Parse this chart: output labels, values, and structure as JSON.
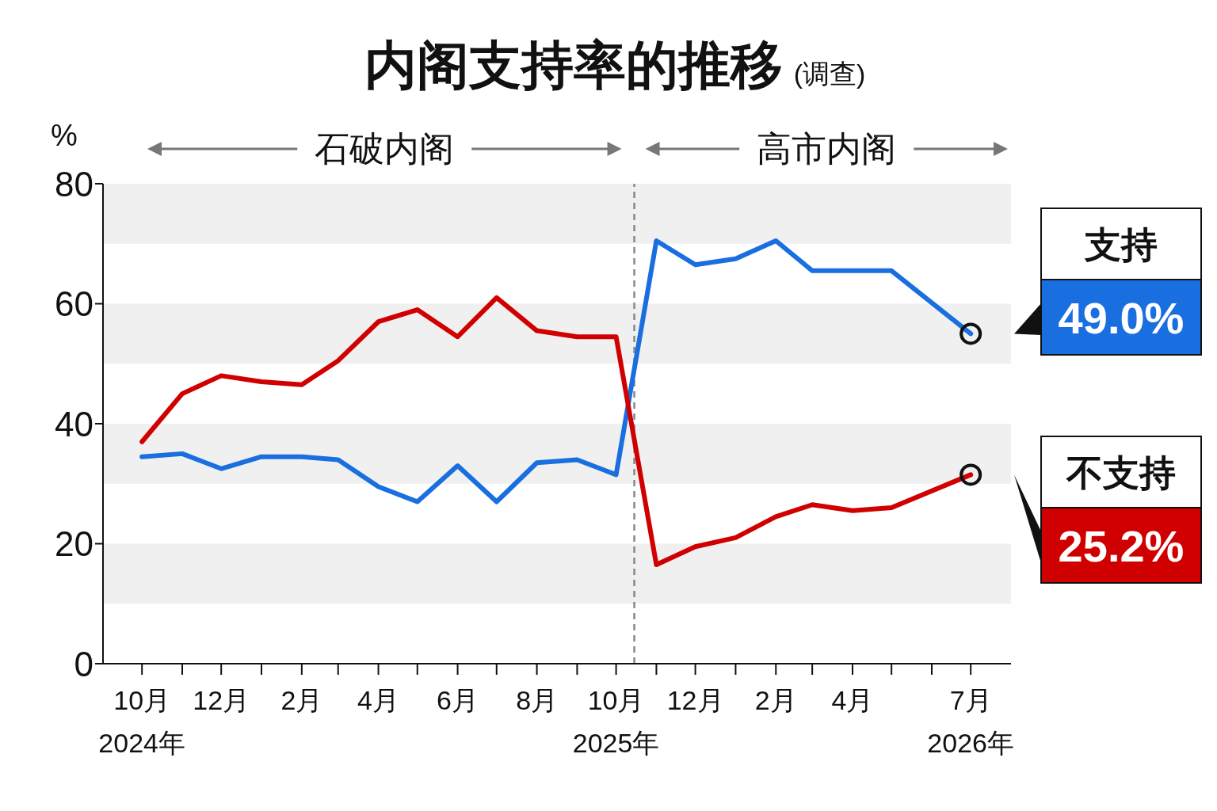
{
  "chart_data": {
    "type": "line",
    "title": "内阁支持率的推移",
    "subtitle": "(调查)",
    "ylabel": "%",
    "x": [
      "2024-10",
      "2024-11",
      "2024-12",
      "2025-01",
      "2025-02",
      "2025-03",
      "2025-04",
      "2025-05",
      "2025-06",
      "2025-07",
      "2025-08",
      "2025-09",
      "2025-10",
      "2025-11",
      "2025-12",
      "2026-01",
      "2026-02",
      "2026-03",
      "2026-04",
      "2026-05",
      "2026-07"
    ],
    "series": [
      {
        "name": "支持",
        "color": "#1a6fe0",
        "values": [
          34.5,
          35,
          32.5,
          34.5,
          34.5,
          34,
          29.5,
          27,
          33,
          27,
          33.5,
          34,
          31.5,
          70.5,
          66.5,
          67.5,
          70.5,
          65.5,
          65.5,
          65.5,
          55
        ]
      },
      {
        "name": "不支持",
        "color": "#d10000",
        "values": [
          37,
          45,
          48,
          47,
          46.5,
          50.5,
          57,
          59,
          54.5,
          61,
          55.5,
          54.5,
          54.5,
          16.5,
          19.5,
          21,
          24.5,
          26.5,
          25.5,
          26,
          31.5
        ]
      }
    ],
    "xlim": [
      "2024-09",
      "2026-08"
    ],
    "xticks": [
      {
        "value": "2024-10",
        "label": "10月\n2024年"
      },
      {
        "value": "2024-11",
        "label": null
      },
      {
        "value": "2024-12",
        "label": "12月"
      },
      {
        "value": "2025-01",
        "label": null
      },
      {
        "value": "2025-02",
        "label": "2月"
      },
      {
        "value": "2025-03",
        "label": null
      },
      {
        "value": "2025-04",
        "label": "4月"
      },
      {
        "value": "2025-05",
        "label": null
      },
      {
        "value": "2025-06",
        "label": "6月"
      },
      {
        "value": "2025-07",
        "label": null
      },
      {
        "value": "2025-08",
        "label": "8月"
      },
      {
        "value": "2025-09",
        "label": null
      },
      {
        "value": "2025-10",
        "label": "10月\n2025年"
      },
      {
        "value": "2025-11",
        "label": null
      },
      {
        "value": "2025-12",
        "label": "12月"
      },
      {
        "value": "2026-01",
        "label": null
      },
      {
        "value": "2026-02",
        "label": "2月"
      },
      {
        "value": "2026-03",
        "label": null
      },
      {
        "value": "2026-04",
        "label": "4月"
      },
      {
        "value": "2026-05",
        "label": null
      },
      {
        "value": "2026-06",
        "label": null
      },
      {
        "value": "2026-07",
        "label": "7月\n2026年"
      }
    ],
    "ylim": [
      0,
      80
    ],
    "yticks": [
      0,
      20,
      40,
      60,
      80
    ],
    "grid": false,
    "legend": "right",
    "bands": [
      {
        "axis": "y",
        "from": 10,
        "to": 20,
        "color": "#f0f0f0"
      },
      {
        "axis": "y",
        "from": 30,
        "to": 40,
        "color": "#f0f0f0"
      },
      {
        "axis": "y",
        "from": 50,
        "to": 60,
        "color": "#f0f0f0"
      },
      {
        "axis": "y",
        "from": 70,
        "to": 80,
        "color": "#f0f0f0"
      }
    ],
    "ref_lines": [
      {
        "axis": "x",
        "value": "2025-10-15",
        "color": "#888888",
        "line_style": "dashed"
      }
    ],
    "annotations": [
      "石破内阁",
      "高市内阁",
      {
        "text": "49.0%",
        "x": "2026-07",
        "y": 55
      },
      {
        "text": "25.2%",
        "x": "2026-07",
        "y": 31.5
      }
    ]
  }
}
